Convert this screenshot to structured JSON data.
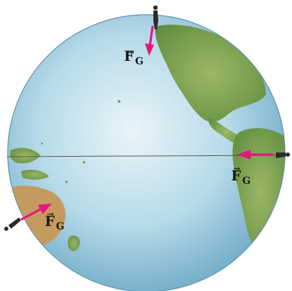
{
  "figure": {
    "force_symbol": "F",
    "force_subscript": "G",
    "vector_marker": "→",
    "arrow_color": "#e6177e",
    "ocean_color": "#9fcbe0",
    "land_color": "#7a9e4e",
    "person_color": "#2b2b2b",
    "equator_color": "#555555"
  },
  "labels": [
    {
      "symbol": "F",
      "subscript": "G"
    },
    {
      "symbol": "F",
      "subscript": "G"
    },
    {
      "symbol": "F",
      "subscript": "G"
    }
  ]
}
